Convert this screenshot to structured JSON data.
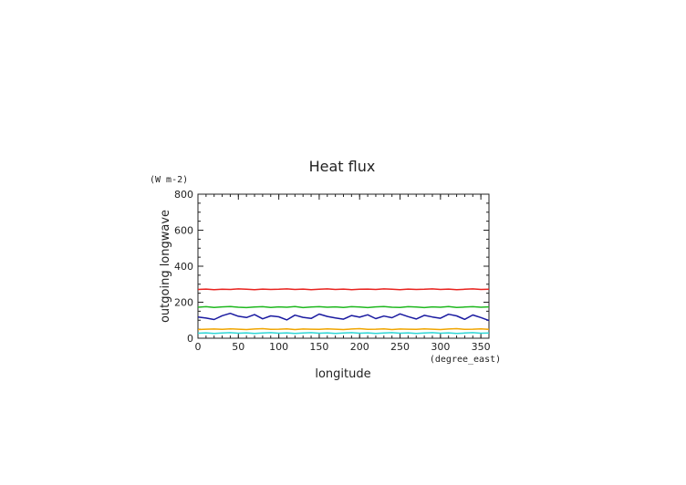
{
  "chart_data": {
    "type": "line",
    "title": "Heat flux",
    "xlabel": "longitude",
    "xunit": "(degree_east)",
    "ylabel": "outgoing longwave",
    "yunit": "(W m-2)",
    "xlim": [
      0,
      360
    ],
    "ylim": [
      0,
      800
    ],
    "xticks": [
      0,
      50,
      100,
      150,
      200,
      250,
      300,
      350
    ],
    "yticks": [
      0,
      200,
      400,
      600,
      800
    ],
    "grid": false,
    "x": [
      0,
      10,
      20,
      30,
      40,
      50,
      60,
      70,
      80,
      90,
      100,
      110,
      120,
      130,
      140,
      150,
      160,
      170,
      180,
      190,
      200,
      210,
      220,
      230,
      240,
      250,
      260,
      270,
      280,
      290,
      300,
      310,
      320,
      330,
      340,
      350,
      360
    ],
    "series": [
      {
        "color": "#e8231f",
        "values": [
          271,
          273,
          270,
          272,
          271,
          274,
          272,
          270,
          273,
          271,
          272,
          274,
          271,
          273,
          270,
          272,
          274,
          271,
          273,
          270,
          272,
          273,
          271,
          274,
          272,
          270,
          273,
          271,
          272,
          274,
          271,
          273,
          270,
          272,
          274,
          271,
          272
        ]
      },
      {
        "color": "#1fb81f",
        "values": [
          172,
          175,
          171,
          174,
          176,
          172,
          170,
          173,
          175,
          171,
          174,
          172,
          176,
          170,
          173,
          175,
          172,
          174,
          171,
          175,
          173,
          170,
          174,
          176,
          172,
          171,
          175,
          173,
          170,
          174,
          172,
          176,
          171,
          173,
          175,
          172,
          174
        ]
      },
      {
        "color": "#1a1aa0",
        "values": [
          118,
          112,
          104,
          125,
          138,
          122,
          115,
          131,
          108,
          124,
          119,
          102,
          128,
          116,
          110,
          134,
          121,
          113,
          106,
          126,
          117,
          130,
          109,
          123,
          114,
          135,
          120,
          107,
          127,
          118,
          111,
          133,
          124,
          105,
          129,
          115,
          98
        ]
      },
      {
        "color": "#f0a500",
        "values": [
          48,
          50,
          51,
          49,
          52,
          50,
          48,
          51,
          53,
          49,
          50,
          52,
          48,
          51,
          50,
          49,
          52,
          50,
          48,
          51,
          53,
          49,
          50,
          52,
          48,
          51,
          50,
          49,
          52,
          50,
          48,
          51,
          53,
          49,
          50,
          52,
          49
        ]
      },
      {
        "color": "#2fd6d6",
        "values": [
          28,
          30,
          27,
          29,
          31,
          28,
          30,
          27,
          29,
          31,
          28,
          30,
          27,
          29,
          31,
          28,
          30,
          27,
          29,
          31,
          28,
          30,
          27,
          29,
          31,
          28,
          30,
          27,
          29,
          31,
          28,
          30,
          27,
          29,
          31,
          28,
          29
        ]
      }
    ]
  }
}
